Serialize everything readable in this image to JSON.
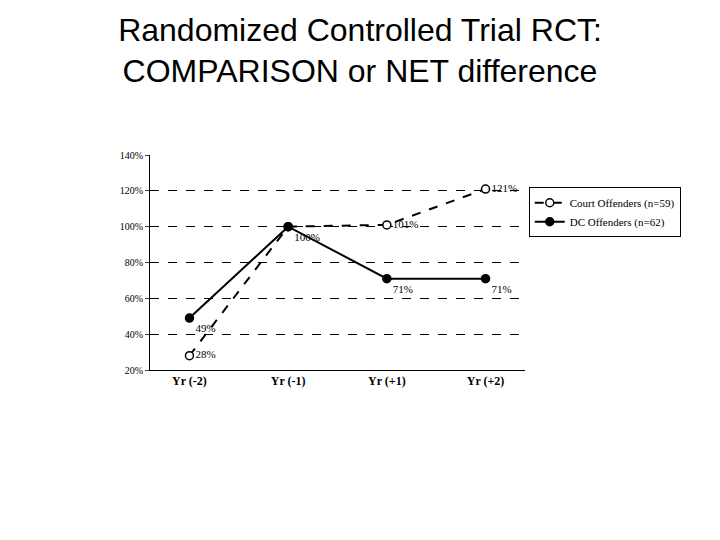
{
  "chart_data": {
    "type": "line",
    "title": "Randomized Controlled Trial RCT: COMPARISON or NET difference",
    "categories": [
      "Yr (-2)",
      "Yr (-1)",
      "Yr (+1)",
      "Yr (+2)"
    ],
    "series": [
      {
        "name": "Court Offenders (n=59)",
        "color": "#000000",
        "marker": "open",
        "line_style": "dashed",
        "values": [
          28,
          100,
          101,
          121
        ],
        "value_labels": [
          "28%",
          null,
          "101%",
          "121%"
        ]
      },
      {
        "name": "DC Offenders (n=62)",
        "color": "#000000",
        "marker": "filled",
        "line_style": "solid",
        "values": [
          49,
          100,
          71,
          71
        ],
        "value_labels": [
          "49%",
          "100%",
          "71%",
          "71%"
        ]
      }
    ],
    "ylim": [
      20,
      140
    ],
    "yticks": [
      {
        "value": 20,
        "label": "20%"
      },
      {
        "value": 40,
        "label": "40%"
      },
      {
        "value": 60,
        "label": "60%"
      },
      {
        "value": 80,
        "label": "80%"
      },
      {
        "value": 100,
        "label": "100%"
      },
      {
        "value": 120,
        "label": "120%"
      },
      {
        "value": 140,
        "label": "140%"
      }
    ],
    "grid": true,
    "legend": "right",
    "data_labels": true
  }
}
